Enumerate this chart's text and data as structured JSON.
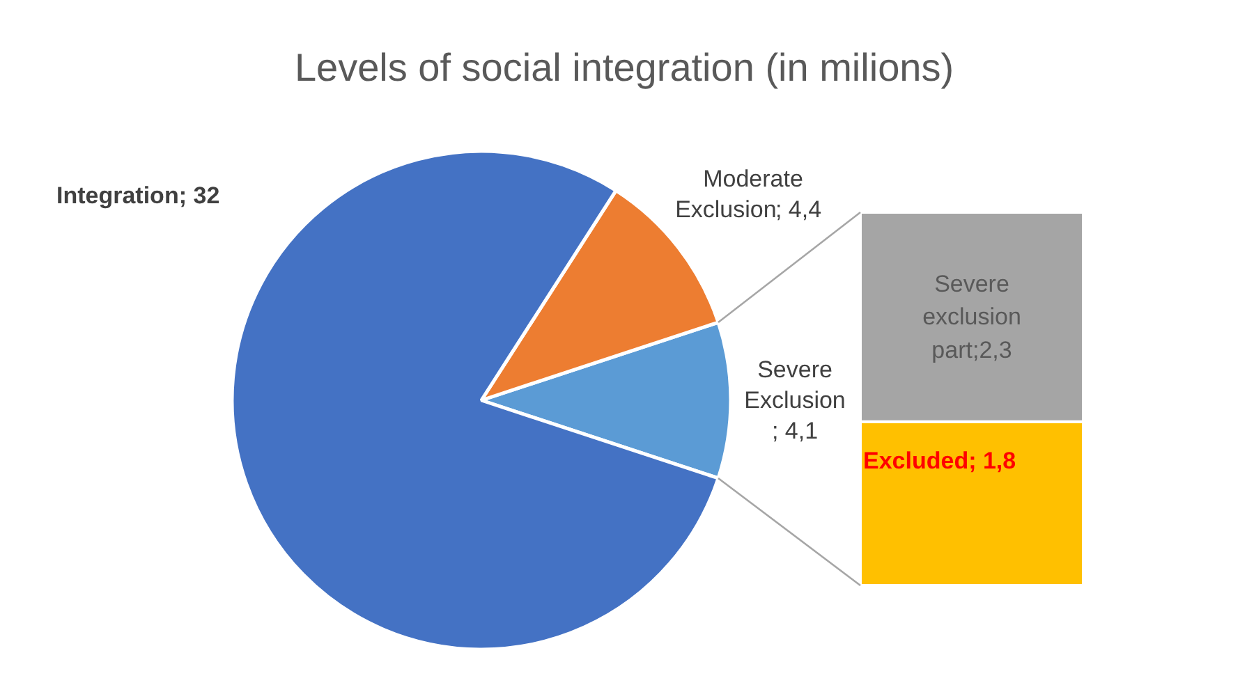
{
  "chart_data": [
    {
      "type": "pie",
      "title": "Levels of social integration (in milions)",
      "categories": [
        "Integration",
        "Moderate Exclusion",
        "Severe Exclusion"
      ],
      "values": [
        32,
        4.4,
        4.1
      ],
      "colors": [
        "#4472c4",
        "#ed7d31",
        "#5b9bd5"
      ],
      "value_labels": [
        "; 32",
        "; 4,4",
        "; 4,1"
      ]
    },
    {
      "type": "bar",
      "stacked": true,
      "categories": [
        null
      ],
      "series": [
        {
          "color": "#ffc000",
          "values": [
            1.8
          ],
          "value_labels": [
            "Excluded; 1,8"
          ]
        },
        {
          "color": "#a5a5a5",
          "values": [
            2.3
          ],
          "value_labels": [
            "Severe exclusion part;2,3"
          ]
        }
      ]
    }
  ]
}
